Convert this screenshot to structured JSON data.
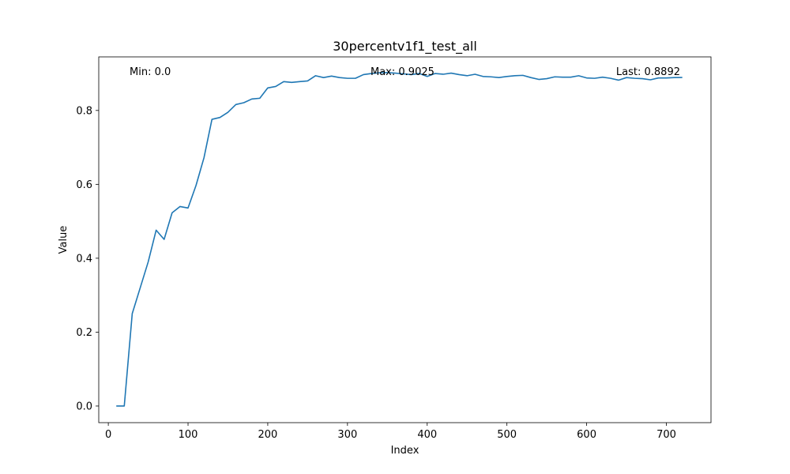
{
  "chart_data": {
    "type": "line",
    "title": "30percentv1f1_test_all",
    "xlabel": "Index",
    "ylabel": "Value",
    "xlim": [
      -12,
      756
    ],
    "ylim": [
      -0.045,
      0.945
    ],
    "xticks": [
      0,
      100,
      200,
      300,
      400,
      500,
      600,
      700
    ],
    "yticks": [
      0.0,
      0.2,
      0.4,
      0.6,
      0.8
    ],
    "ytick_labels": [
      "0.0",
      "0.2",
      "0.4",
      "0.6",
      "0.8"
    ],
    "grid": false,
    "series": [
      {
        "color": "#1f77b4",
        "x": [
          10,
          20,
          30,
          40,
          50,
          60,
          70,
          80,
          90,
          100,
          110,
          120,
          130,
          140,
          150,
          160,
          170,
          180,
          190,
          200,
          210,
          220,
          230,
          240,
          250,
          260,
          270,
          280,
          290,
          300,
          310,
          320,
          330,
          340,
          350,
          360,
          370,
          380,
          390,
          400,
          410,
          420,
          430,
          440,
          450,
          460,
          470,
          480,
          490,
          500,
          510,
          520,
          530,
          540,
          550,
          560,
          570,
          580,
          590,
          600,
          610,
          620,
          630,
          640,
          650,
          660,
          670,
          680,
          690,
          700,
          710,
          720
        ],
        "y": [
          0.0,
          0.0,
          0.25,
          0.32,
          0.39,
          0.476,
          0.451,
          0.523,
          0.54,
          0.536,
          0.597,
          0.672,
          0.776,
          0.781,
          0.795,
          0.816,
          0.821,
          0.831,
          0.833,
          0.861,
          0.865,
          0.878,
          0.876,
          0.878,
          0.88,
          0.894,
          0.889,
          0.893,
          0.889,
          0.887,
          0.887,
          0.897,
          0.9,
          0.902,
          0.9025,
          0.901,
          0.899,
          0.897,
          0.9,
          0.892,
          0.9,
          0.898,
          0.901,
          0.897,
          0.894,
          0.898,
          0.892,
          0.891,
          0.889,
          0.892,
          0.894,
          0.895,
          0.889,
          0.884,
          0.886,
          0.891,
          0.89,
          0.89,
          0.894,
          0.888,
          0.887,
          0.89,
          0.887,
          0.882,
          0.889,
          0.887,
          0.886,
          0.883,
          0.888,
          0.888,
          0.889,
          0.8892
        ]
      }
    ],
    "annotations": {
      "min": "Min: 0.0",
      "max": "Max: 0.9025",
      "last": "Last: 0.8892"
    }
  }
}
